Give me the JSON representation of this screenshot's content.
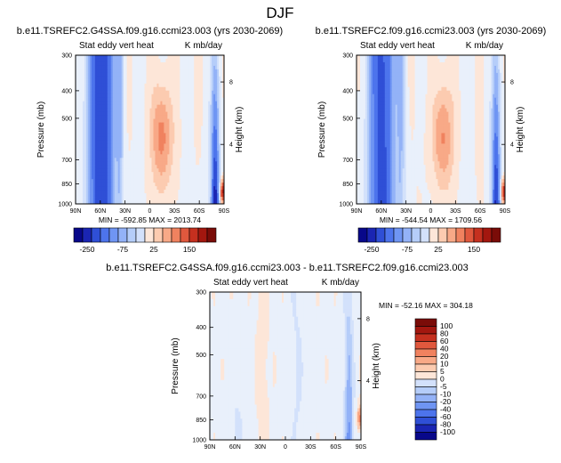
{
  "figure": {
    "title": "DJF"
  },
  "colors": {
    "diverging": [
      "#08088a",
      "#1a25b3",
      "#2f4fd6",
      "#4d74ec",
      "#6f95f3",
      "#93b2f7",
      "#b5cdf9",
      "#d3e1fb",
      "#e9f0fb",
      "#fde6d8",
      "#fccbb0",
      "#f8a987",
      "#f0825f",
      "#e0583d",
      "#c5301f",
      "#a3170f",
      "#7a0c08"
    ]
  },
  "chart_data": [
    {
      "type": "contour",
      "panel": "top-left",
      "title": "b.e11.TSREFC2.G4SSA.f09.g16.ccmi23.003 (yrs 2030-2069)",
      "left_label": "Stat eddy vert heat",
      "right_label": "K mb/day",
      "xlabel": "",
      "ylabel": "Pressure (mb)",
      "ylabel_right": "Height (km)",
      "x_ticks": [
        "90N",
        "60N",
        "30N",
        "0",
        "30S",
        "60S",
        "90S"
      ],
      "y_ticks": [
        "300",
        "400",
        "500",
        "700",
        "850",
        "1000"
      ],
      "height_ticks": [
        "8",
        "4"
      ],
      "min_text": "MIN = -592.85",
      "max_text": "MAX = 2013.74",
      "colorbar_labels": [
        "-250",
        "-75",
        "25",
        "150"
      ]
    },
    {
      "type": "contour",
      "panel": "top-right",
      "title": "b.e11.TSREFC2.f09.g16.ccmi23.003 (yrs 2030-2069)",
      "left_label": "Stat eddy vert heat",
      "right_label": "K mb/day",
      "xlabel": "",
      "ylabel": "Pressure (mb)",
      "ylabel_right": "Height (km)",
      "x_ticks": [
        "90N",
        "60N",
        "30N",
        "0",
        "30S",
        "60S",
        "90S"
      ],
      "y_ticks": [
        "300",
        "400",
        "500",
        "700",
        "850",
        "1000"
      ],
      "height_ticks": [
        "8",
        "4"
      ],
      "min_text": "MIN = -544.54",
      "max_text": "MAX = 1709.56",
      "colorbar_labels": [
        "-250",
        "-75",
        "25",
        "150"
      ]
    },
    {
      "type": "contour",
      "panel": "bottom",
      "title": "b.e11.TSREFC2.G4SSA.f09.g16.ccmi23.003 - b.e11.TSREFC2.f09.g16.ccmi23.003",
      "left_label": "Stat eddy vert heat",
      "right_label": "K mb/day",
      "xlabel": "",
      "ylabel": "Pressure (mb)",
      "ylabel_right": "Height (km)",
      "x_ticks": [
        "90N",
        "60N",
        "30N",
        "0",
        "30S",
        "60S",
        "90S"
      ],
      "y_ticks": [
        "300",
        "400",
        "500",
        "700",
        "850",
        "1000"
      ],
      "height_ticks": [
        "8",
        "4"
      ],
      "min_text": "MIN = -52.16",
      "max_text": "MAX = 304.18",
      "colorbar_labels": [
        "100",
        "80",
        "60",
        "40",
        "20",
        "10",
        "5",
        "0",
        "-5",
        "-10",
        "-20",
        "-40",
        "-60",
        "-80",
        "-100"
      ]
    }
  ]
}
